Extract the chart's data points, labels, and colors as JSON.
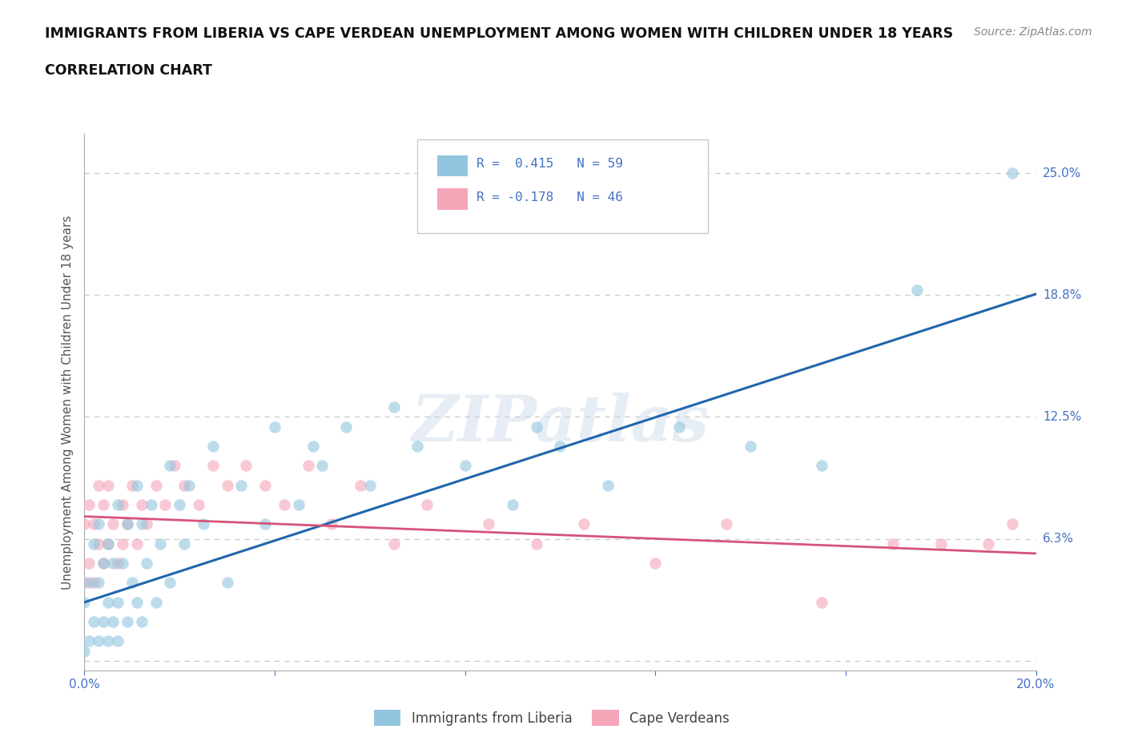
{
  "title_line1": "IMMIGRANTS FROM LIBERIA VS CAPE VERDEAN UNEMPLOYMENT AMONG WOMEN WITH CHILDREN UNDER 18 YEARS",
  "title_line2": "CORRELATION CHART",
  "source_text": "Source: ZipAtlas.com",
  "ylabel": "Unemployment Among Women with Children Under 18 years",
  "xlim": [
    0.0,
    0.2
  ],
  "ylim": [
    -0.005,
    0.27
  ],
  "ytick_positions": [
    0.0,
    0.0625,
    0.125,
    0.1875,
    0.25
  ],
  "ytick_labels_right": [
    "",
    "6.3%",
    "12.5%",
    "18.8%",
    "25.0%"
  ],
  "r_blue": 0.415,
  "n_blue": 59,
  "r_pink": -0.178,
  "n_pink": 46,
  "blue_color": "#92c5de",
  "pink_color": "#f4a6b8",
  "blue_line_color": "#2166ac",
  "pink_line_color": "#d6537a",
  "watermark": "ZIPatlas",
  "legend_label_blue": "Immigrants from Liberia",
  "legend_label_pink": "Cape Verdeans",
  "blue_line_x0": 0.0,
  "blue_line_y0": 0.03,
  "blue_line_x1": 0.2,
  "blue_line_y1": 0.188,
  "pink_line_x0": 0.0,
  "pink_line_y0": 0.074,
  "pink_line_x1": 0.2,
  "pink_line_y1": 0.055,
  "blue_scatter_x": [
    0.0,
    0.0,
    0.001,
    0.001,
    0.002,
    0.002,
    0.003,
    0.003,
    0.003,
    0.004,
    0.004,
    0.005,
    0.005,
    0.005,
    0.006,
    0.006,
    0.007,
    0.007,
    0.007,
    0.008,
    0.009,
    0.009,
    0.01,
    0.011,
    0.011,
    0.012,
    0.012,
    0.013,
    0.014,
    0.015,
    0.016,
    0.018,
    0.018,
    0.02,
    0.021,
    0.022,
    0.025,
    0.027,
    0.03,
    0.033,
    0.038,
    0.04,
    0.045,
    0.048,
    0.05,
    0.055,
    0.06,
    0.065,
    0.07,
    0.08,
    0.09,
    0.095,
    0.1,
    0.11,
    0.125,
    0.14,
    0.155,
    0.175,
    0.195
  ],
  "blue_scatter_y": [
    0.005,
    0.03,
    0.01,
    0.04,
    0.02,
    0.06,
    0.01,
    0.04,
    0.07,
    0.02,
    0.05,
    0.01,
    0.03,
    0.06,
    0.02,
    0.05,
    0.01,
    0.03,
    0.08,
    0.05,
    0.02,
    0.07,
    0.04,
    0.03,
    0.09,
    0.02,
    0.07,
    0.05,
    0.08,
    0.03,
    0.06,
    0.04,
    0.1,
    0.08,
    0.06,
    0.09,
    0.07,
    0.11,
    0.04,
    0.09,
    0.07,
    0.12,
    0.08,
    0.11,
    0.1,
    0.12,
    0.09,
    0.13,
    0.11,
    0.1,
    0.08,
    0.12,
    0.11,
    0.09,
    0.12,
    0.11,
    0.1,
    0.19,
    0.25
  ],
  "pink_scatter_x": [
    0.0,
    0.0,
    0.001,
    0.001,
    0.002,
    0.002,
    0.003,
    0.003,
    0.004,
    0.004,
    0.005,
    0.005,
    0.006,
    0.007,
    0.008,
    0.008,
    0.009,
    0.01,
    0.011,
    0.012,
    0.013,
    0.015,
    0.017,
    0.019,
    0.021,
    0.024,
    0.027,
    0.03,
    0.034,
    0.038,
    0.042,
    0.047,
    0.052,
    0.058,
    0.065,
    0.072,
    0.085,
    0.095,
    0.105,
    0.12,
    0.135,
    0.155,
    0.17,
    0.18,
    0.19,
    0.195
  ],
  "pink_scatter_y": [
    0.04,
    0.07,
    0.05,
    0.08,
    0.04,
    0.07,
    0.06,
    0.09,
    0.05,
    0.08,
    0.06,
    0.09,
    0.07,
    0.05,
    0.08,
    0.06,
    0.07,
    0.09,
    0.06,
    0.08,
    0.07,
    0.09,
    0.08,
    0.1,
    0.09,
    0.08,
    0.1,
    0.09,
    0.1,
    0.09,
    0.08,
    0.1,
    0.07,
    0.09,
    0.06,
    0.08,
    0.07,
    0.06,
    0.07,
    0.05,
    0.07,
    0.03,
    0.06,
    0.06,
    0.06,
    0.07
  ]
}
